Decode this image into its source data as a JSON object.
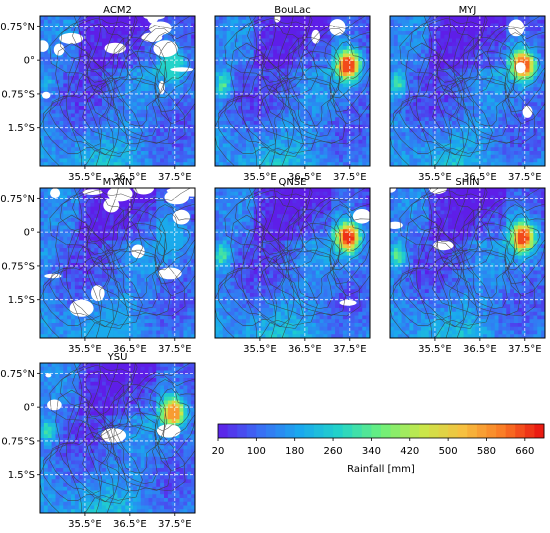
{
  "chart_data": {
    "type": "heatmap",
    "colormap": "rainbow",
    "x_axis": {
      "ticks": [
        35.5,
        36.5,
        37.5
      ],
      "tick_labels": [
        "35.5°E",
        "36.5°E",
        "37.5°E"
      ]
    },
    "y_axis": {
      "ticks": [
        0.75,
        0,
        -0.75,
        -1.5
      ],
      "tick_labels": [
        "0.75°N",
        "0°",
        "0.75°S",
        "1.5°S"
      ]
    },
    "grid": true,
    "panels": [
      {
        "title": "ACM2",
        "max_rain": 260,
        "no_data_cover": 0.22
      },
      {
        "title": "BouLac",
        "max_rain": 640,
        "no_data_cover": 0.05
      },
      {
        "title": "MYJ",
        "max_rain": 620,
        "no_data_cover": 0.05
      },
      {
        "title": "MYNN",
        "max_rain": 180,
        "no_data_cover": 0.3
      },
      {
        "title": "QNSE",
        "max_rain": 660,
        "no_data_cover": 0.04
      },
      {
        "title": "SHIN",
        "max_rain": 640,
        "no_data_cover": 0.06
      },
      {
        "title": "YSU",
        "max_rain": 560,
        "no_data_cover": 0.07
      }
    ],
    "colorbar": {
      "label": "Rainfall [mm]",
      "min": 20,
      "max": 700,
      "tick_values": [
        20,
        100,
        180,
        260,
        340,
        420,
        500,
        580,
        660
      ],
      "tick_labels": [
        "20",
        "100",
        "180",
        "260",
        "340",
        "420",
        "500",
        "580",
        "660"
      ],
      "colors": [
        "#5e1ee8",
        "#3a6cf4",
        "#1aa8ee",
        "#22d4c8",
        "#6af07c",
        "#c8e84a",
        "#f6c040",
        "#fa7a24",
        "#e81010"
      ]
    },
    "colors": {
      "no_data": "#ffffff",
      "contour": "#3a3a3a",
      "grid": "#ffffff"
    }
  }
}
